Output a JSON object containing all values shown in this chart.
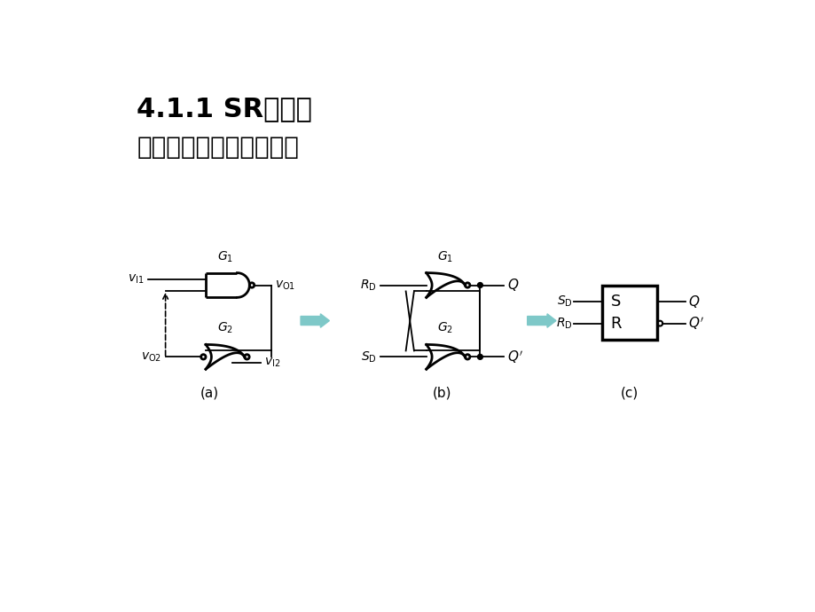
{
  "title1": "4.1.1 SR锁存器",
  "title2": "一、电路结构与工作原理",
  "bg_color": "#ffffff",
  "line_color": "#000000",
  "arrow_color": "#7EC8C8",
  "label_a": "(a)",
  "label_b": "(b)",
  "label_c": "(c)",
  "gate_lw": 2.0,
  "title1_fontsize": 22,
  "title2_fontsize": 20
}
